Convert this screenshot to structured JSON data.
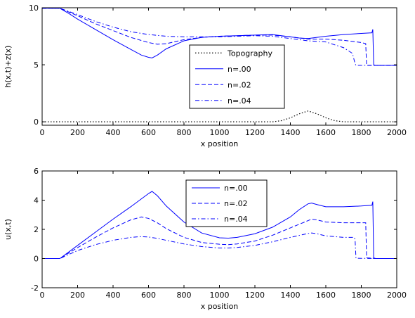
{
  "chart_data": [
    {
      "type": "line",
      "xlabel": "x position",
      "ylabel": "h(x,t)+z(x)",
      "xlim": [
        0,
        2000
      ],
      "ylim": [
        -0.3,
        10
      ],
      "xticks": [
        "0",
        "200",
        "400",
        "600",
        "800",
        "1000",
        "1200",
        "1400",
        "1600",
        "1800",
        "2000"
      ],
      "yticks": [
        "0",
        "5",
        "10"
      ],
      "legend_position": "bottom-center",
      "series": [
        {
          "name": "Topography",
          "style": "dotted",
          "color": "#000000",
          "x": [
            0,
            1300,
            1350,
            1400,
            1450,
            1500,
            1550,
            1600,
            1650,
            1700,
            2000
          ],
          "y": [
            0,
            0,
            0.1,
            0.35,
            0.7,
            0.95,
            0.7,
            0.35,
            0.1,
            0,
            0
          ]
        },
        {
          "name": "n=.00",
          "style": "solid",
          "color": "#0000ff",
          "x": [
            0,
            100,
            150,
            200,
            300,
            400,
            500,
            560,
            600,
            620,
            650,
            700,
            800,
            900,
            1000,
            1100,
            1200,
            1300,
            1400,
            1450,
            1500,
            1550,
            1600,
            1700,
            1800,
            1860,
            1865,
            1870,
            1880,
            2000
          ],
          "y": [
            9.95,
            9.95,
            9.5,
            9.0,
            8.1,
            7.2,
            6.35,
            5.85,
            5.65,
            5.6,
            5.85,
            6.4,
            7.1,
            7.4,
            7.5,
            7.55,
            7.6,
            7.65,
            7.45,
            7.35,
            7.3,
            7.4,
            7.5,
            7.65,
            7.75,
            7.8,
            8.1,
            5.0,
            4.95,
            4.95
          ]
        },
        {
          "name": "n=.02",
          "style": "dashed",
          "color": "#0000ff",
          "x": [
            0,
            100,
            200,
            300,
            400,
            500,
            600,
            650,
            700,
            800,
            900,
            1000,
            1100,
            1200,
            1300,
            1400,
            1500,
            1600,
            1700,
            1800,
            1825,
            1830,
            1880,
            2000
          ],
          "y": [
            9.95,
            9.95,
            9.3,
            8.6,
            8.0,
            7.4,
            6.95,
            6.8,
            6.85,
            7.2,
            7.4,
            7.5,
            7.55,
            7.6,
            7.6,
            7.45,
            7.25,
            7.25,
            7.15,
            6.95,
            6.85,
            4.95,
            4.95,
            4.95
          ]
        },
        {
          "name": "n=.04",
          "style": "dashdot",
          "color": "#0000ff",
          "x": [
            0,
            100,
            200,
            300,
            400,
            500,
            600,
            700,
            800,
            900,
            1000,
            1100,
            1200,
            1300,
            1400,
            1500,
            1600,
            1700,
            1750,
            1765,
            1770,
            1880,
            2000
          ],
          "y": [
            9.95,
            9.95,
            9.4,
            8.8,
            8.3,
            7.9,
            7.65,
            7.5,
            7.45,
            7.45,
            7.45,
            7.5,
            7.55,
            7.5,
            7.3,
            7.1,
            7.0,
            6.5,
            6.0,
            5.1,
            4.95,
            4.95,
            4.95
          ]
        }
      ]
    },
    {
      "type": "line",
      "xlabel": "x position",
      "ylabel": "u(x,t)",
      "xlim": [
        0,
        2000
      ],
      "ylim": [
        -2,
        6
      ],
      "xticks": [
        "0",
        "200",
        "400",
        "600",
        "800",
        "1000",
        "1200",
        "1400",
        "1600",
        "1800",
        "2000"
      ],
      "yticks": [
        "-2",
        "0",
        "2",
        "4",
        "6"
      ],
      "legend_position": "top-center",
      "series": [
        {
          "name": "n=.00",
          "style": "solid",
          "color": "#0000ff",
          "x": [
            0,
            100,
            200,
            300,
            400,
            500,
            600,
            620,
            650,
            700,
            800,
            900,
            1000,
            1050,
            1100,
            1200,
            1300,
            1400,
            1450,
            1500,
            1520,
            1550,
            1600,
            1700,
            1800,
            1860,
            1865,
            1870,
            1880,
            2000
          ],
          "y": [
            0,
            0,
            0.9,
            1.8,
            2.7,
            3.55,
            4.45,
            4.6,
            4.3,
            3.6,
            2.5,
            1.75,
            1.42,
            1.4,
            1.45,
            1.7,
            2.15,
            2.85,
            3.35,
            3.75,
            3.8,
            3.7,
            3.55,
            3.55,
            3.6,
            3.65,
            3.9,
            0.05,
            0,
            0
          ]
        },
        {
          "name": "n=.02",
          "style": "dashed",
          "color": "#0000ff",
          "x": [
            0,
            100,
            200,
            300,
            400,
            500,
            560,
            600,
            650,
            700,
            800,
            900,
            1000,
            1050,
            1100,
            1200,
            1300,
            1400,
            1500,
            1520,
            1550,
            1600,
            1700,
            1800,
            1825,
            1830,
            1880,
            2000
          ],
          "y": [
            0,
            0,
            0.75,
            1.45,
            2.1,
            2.65,
            2.85,
            2.75,
            2.45,
            2.05,
            1.45,
            1.1,
            0.98,
            0.95,
            1.0,
            1.2,
            1.6,
            2.1,
            2.6,
            2.7,
            2.65,
            2.5,
            2.45,
            2.45,
            2.45,
            0.05,
            0,
            0
          ]
        },
        {
          "name": "n=.04",
          "style": "dashdot",
          "color": "#0000ff",
          "x": [
            0,
            100,
            200,
            300,
            400,
            500,
            550,
            600,
            650,
            700,
            800,
            900,
            1000,
            1050,
            1100,
            1200,
            1300,
            1400,
            1500,
            1520,
            1550,
            1600,
            1700,
            1760,
            1765,
            1770,
            1880,
            2000
          ],
          "y": [
            0,
            0,
            0.55,
            0.95,
            1.25,
            1.45,
            1.5,
            1.48,
            1.38,
            1.25,
            1.0,
            0.82,
            0.72,
            0.72,
            0.76,
            0.9,
            1.15,
            1.45,
            1.72,
            1.75,
            1.7,
            1.55,
            1.45,
            1.45,
            1.3,
            0.02,
            0,
            0
          ]
        }
      ]
    }
  ]
}
